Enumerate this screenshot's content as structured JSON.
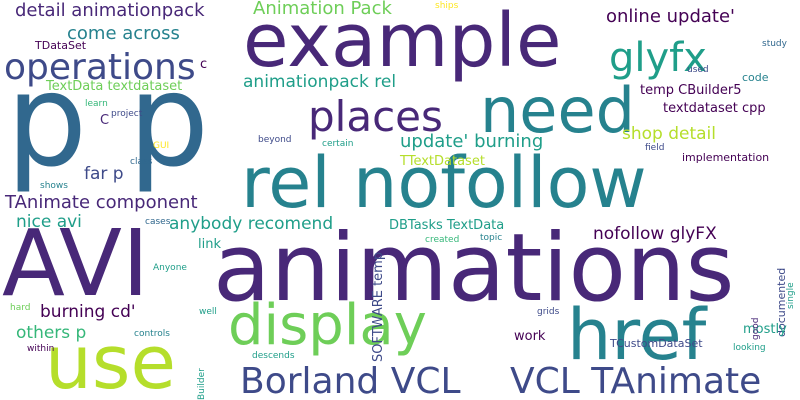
{
  "words": [
    {
      "text": "example"
    },
    {
      "text": "p p"
    },
    {
      "text": "AVI"
    },
    {
      "text": "animations"
    },
    {
      "text": "rel nofollow"
    },
    {
      "text": "need"
    },
    {
      "text": "href"
    },
    {
      "text": "use"
    },
    {
      "text": "display"
    },
    {
      "text": "Borland VCL"
    },
    {
      "text": "VCL TAnimate"
    },
    {
      "text": "operations"
    },
    {
      "text": "glyfx"
    },
    {
      "text": "places"
    },
    {
      "text": "detail animationpack"
    },
    {
      "text": "Animation Pack"
    },
    {
      "text": "come across"
    },
    {
      "text": "online update'"
    },
    {
      "text": "animationpack rel"
    },
    {
      "text": "update' burning"
    },
    {
      "text": "shop detail"
    },
    {
      "text": "TAnimate component"
    },
    {
      "text": "nice avi"
    },
    {
      "text": "anybody recomend"
    },
    {
      "text": "nofollow glyFX"
    },
    {
      "text": "burning cd'"
    },
    {
      "text": "others p"
    },
    {
      "text": "far p"
    },
    {
      "text": "TextData textdataset"
    },
    {
      "text": "temp CBuilder5"
    },
    {
      "text": "textdataset cpp"
    },
    {
      "text": "TTextDataset"
    },
    {
      "text": "DBTasks TextData"
    },
    {
      "text": "SOFTWARE temp"
    },
    {
      "text": "TDataSet"
    },
    {
      "text": "TCustomDataSet"
    },
    {
      "text": "implementation"
    },
    {
      "text": "documented"
    },
    {
      "text": "mostly"
    },
    {
      "text": "work"
    },
    {
      "text": "link"
    },
    {
      "text": "c"
    },
    {
      "text": "C"
    },
    {
      "text": "ships"
    },
    {
      "text": "study"
    },
    {
      "text": "used"
    },
    {
      "text": "code"
    },
    {
      "text": "learn"
    },
    {
      "text": "project"
    },
    {
      "text": "beyond"
    },
    {
      "text": "certain"
    },
    {
      "text": "field"
    },
    {
      "text": "class"
    },
    {
      "text": "GUI"
    },
    {
      "text": "shows"
    },
    {
      "text": "cases"
    },
    {
      "text": "topic"
    },
    {
      "text": "created"
    },
    {
      "text": "Anyone"
    },
    {
      "text": "single"
    },
    {
      "text": "good"
    },
    {
      "text": "grids"
    },
    {
      "text": "hard"
    },
    {
      "text": "well"
    },
    {
      "text": "Builder"
    },
    {
      "text": "controls"
    },
    {
      "text": "within"
    },
    {
      "text": "descends"
    },
    {
      "text": "looking"
    }
  ]
}
